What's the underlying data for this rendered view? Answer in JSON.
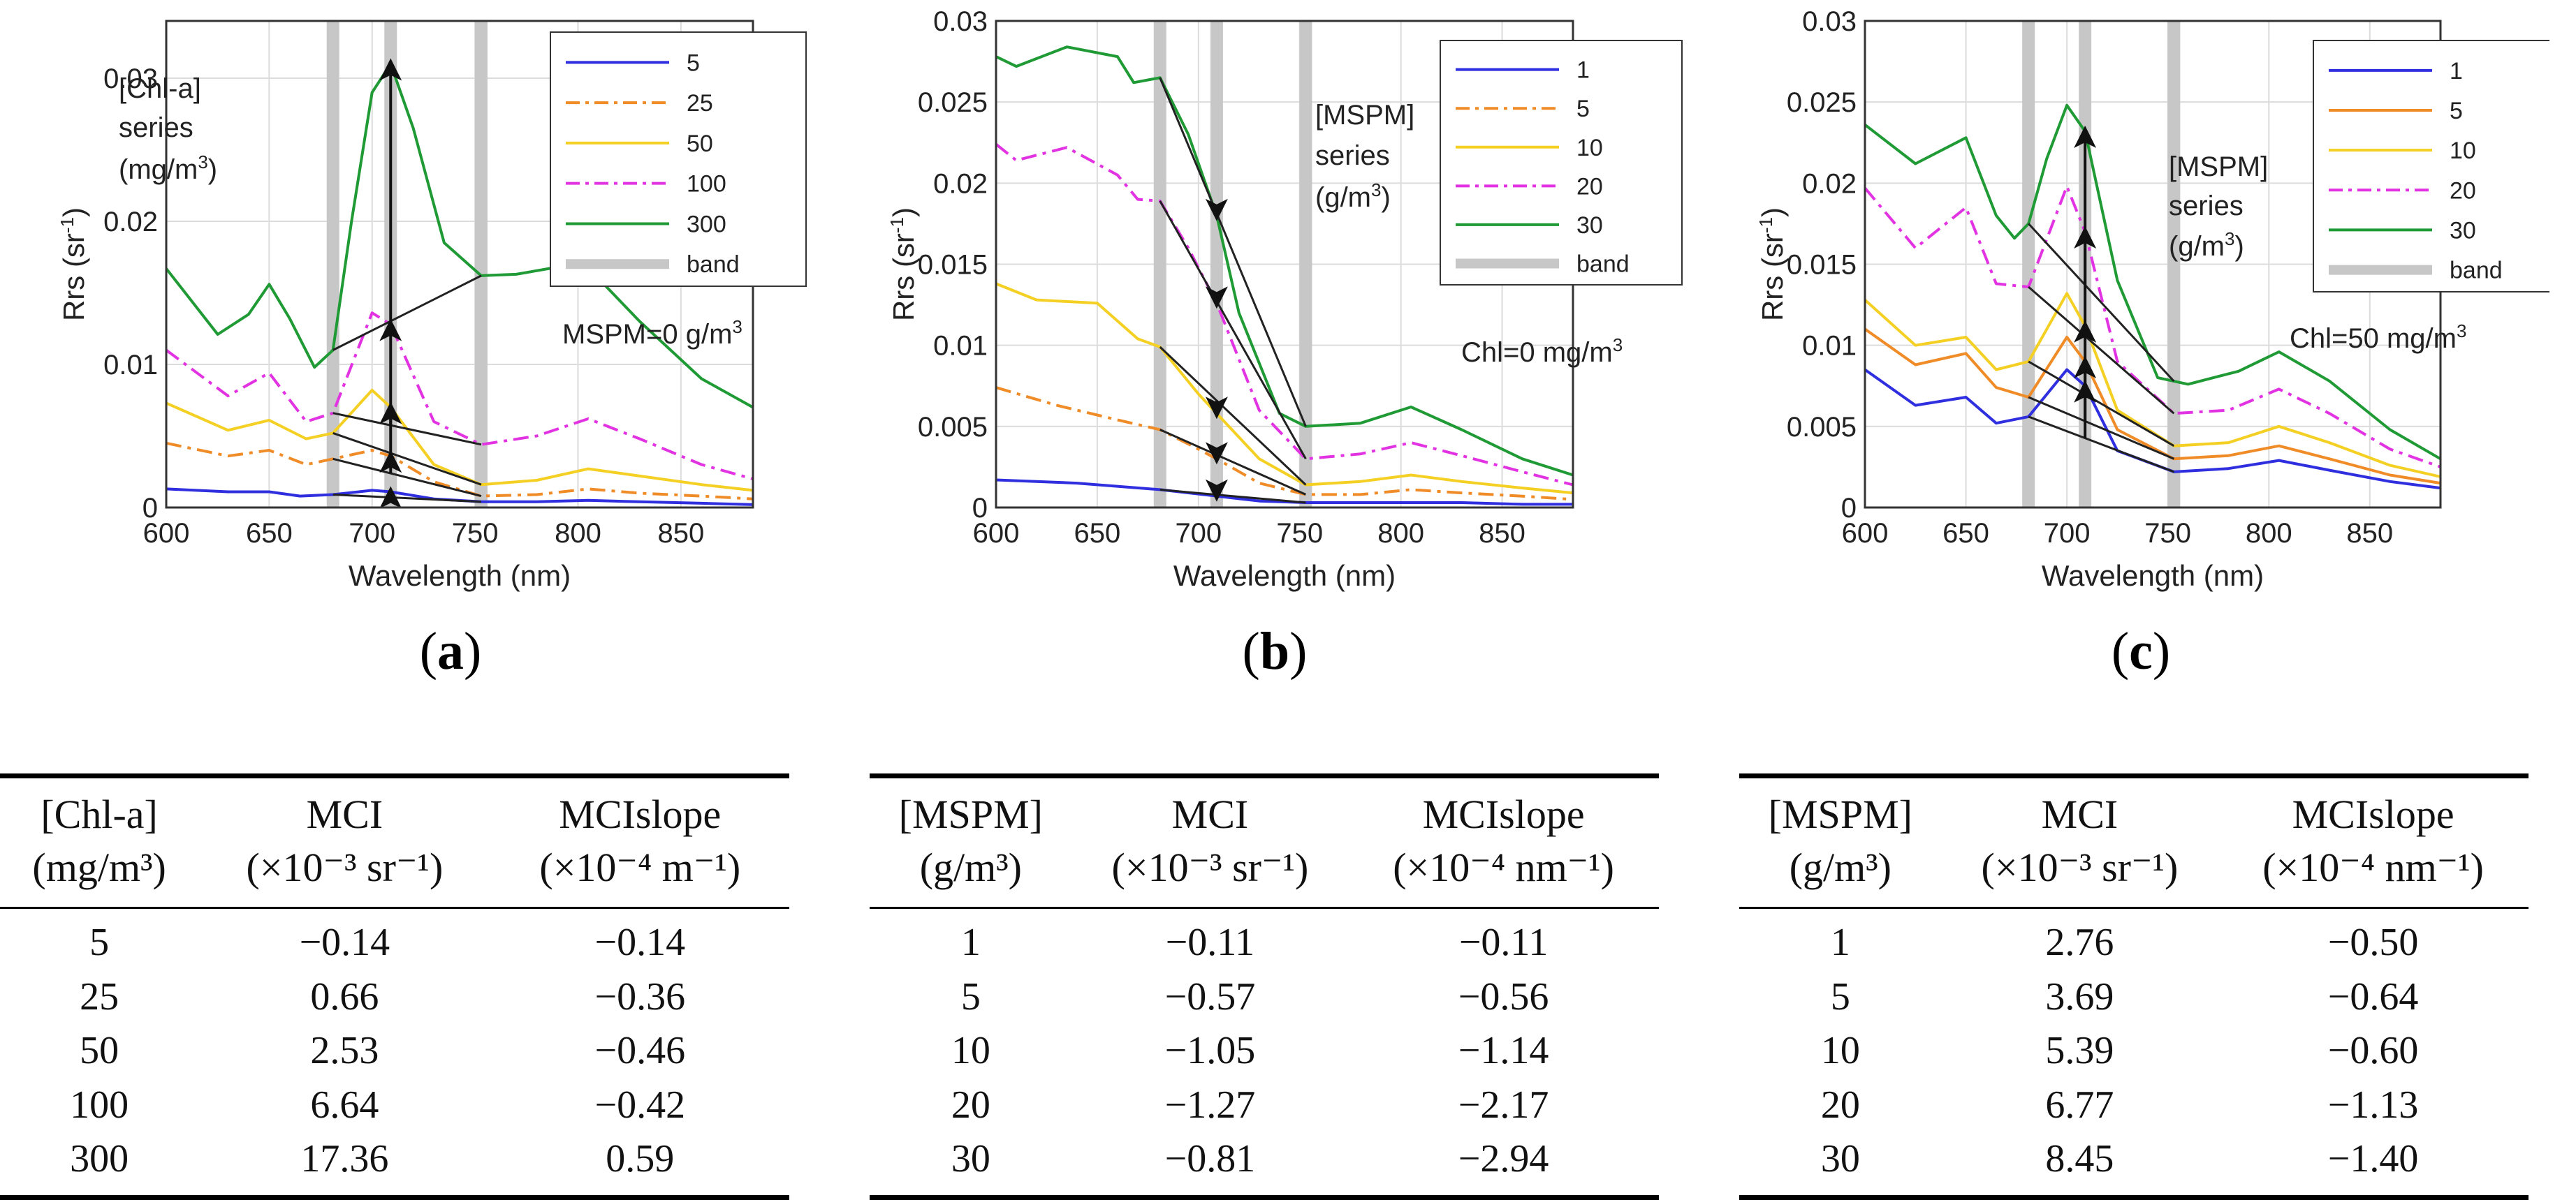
{
  "colors": {
    "c1": "#2f2fe0",
    "c2": "#f08c28",
    "c3": "#f5d024",
    "c4": "#e233e2",
    "c5": "#1f9a35",
    "band": "#c7c7c7",
    "grid": "#dcdcdc"
  },
  "chart_data": [
    {
      "type": "line",
      "panel_label": "a",
      "xlabel": "Wavelength (nm)",
      "ylabel": "Rrs (sr⁻¹)",
      "xlim": [
        600,
        885
      ],
      "ylim": [
        0,
        0.034
      ],
      "xticks": [
        600,
        650,
        700,
        750,
        800,
        850
      ],
      "xtick_labels": [
        "600",
        "650",
        "700",
        "750",
        "800",
        "850"
      ],
      "yticks": [
        0,
        0.01,
        0.02,
        0.03
      ],
      "ytick_labels": [
        "0",
        "0.01",
        "0.02",
        "0.03"
      ],
      "grid": true,
      "bands": [
        681,
        709,
        753
      ],
      "annotations": [
        "[Chl-a]",
        "series",
        "(mg/m³)",
        "MSPM=0 g/m³"
      ],
      "series": [
        {
          "name": "5",
          "style": "solid",
          "color": "#2f2fe0",
          "x": [
            600,
            630,
            650,
            665,
            681,
            700,
            709,
            730,
            753,
            780,
            805,
            830,
            860,
            885
          ],
          "y": [
            0.0013,
            0.0011,
            0.0011,
            0.0008,
            0.0009,
            0.0012,
            0.0011,
            0.0006,
            0.0004,
            0.0004,
            0.0005,
            0.0004,
            0.0003,
            0.0002
          ]
        },
        {
          "name": "25",
          "style": "dashdot",
          "color": "#f08c28",
          "x": [
            600,
            630,
            650,
            668,
            681,
            700,
            709,
            730,
            753,
            780,
            805,
            830,
            860,
            885
          ],
          "y": [
            0.0045,
            0.0036,
            0.004,
            0.003,
            0.0034,
            0.004,
            0.0036,
            0.0018,
            0.0008,
            0.0009,
            0.0013,
            0.001,
            0.0008,
            0.0006
          ]
        },
        {
          "name": "50",
          "style": "solid",
          "color": "#f5d024",
          "x": [
            600,
            630,
            650,
            668,
            681,
            700,
            709,
            730,
            753,
            780,
            805,
            830,
            860,
            885
          ],
          "y": [
            0.0073,
            0.0054,
            0.0061,
            0.0048,
            0.0052,
            0.0082,
            0.007,
            0.003,
            0.0016,
            0.0019,
            0.0027,
            0.0022,
            0.0016,
            0.0012
          ]
        },
        {
          "name": "100",
          "style": "dashdot",
          "color": "#e233e2",
          "x": [
            600,
            630,
            650,
            668,
            681,
            700,
            709,
            730,
            753,
            780,
            805,
            830,
            860,
            885
          ],
          "y": [
            0.011,
            0.0078,
            0.0094,
            0.006,
            0.0066,
            0.0136,
            0.0128,
            0.006,
            0.0044,
            0.005,
            0.0062,
            0.0048,
            0.003,
            0.002
          ]
        },
        {
          "name": "300",
          "style": "solid",
          "color": "#1f9a35",
          "x": [
            600,
            625,
            640,
            650,
            660,
            672,
            681,
            690,
            700,
            709,
            720,
            735,
            753,
            770,
            790,
            810,
            830,
            860,
            885
          ],
          "y": [
            0.0167,
            0.0121,
            0.0135,
            0.0156,
            0.0132,
            0.0098,
            0.011,
            0.02,
            0.029,
            0.031,
            0.0265,
            0.0185,
            0.0162,
            0.0163,
            0.0168,
            0.016,
            0.013,
            0.009,
            0.007
          ]
        },
        {
          "name": "band",
          "style": "band",
          "color": "#c7c7c7",
          "x": [],
          "y": []
        }
      ]
    },
    {
      "type": "line",
      "panel_label": "b",
      "xlabel": "Wavelength (nm)",
      "ylabel": "Rrs (sr⁻¹)",
      "xlim": [
        600,
        885
      ],
      "ylim": [
        0,
        0.03
      ],
      "xticks": [
        600,
        650,
        700,
        750,
        800,
        850
      ],
      "xtick_labels": [
        "600",
        "650",
        "700",
        "750",
        "800",
        "850"
      ],
      "yticks": [
        0,
        0.005,
        0.01,
        0.015,
        0.02,
        0.025,
        0.03
      ],
      "ytick_labels": [
        "0",
        "0.005",
        "0.01",
        "0.015",
        "0.02",
        "0.025",
        "0.03"
      ],
      "grid": true,
      "bands": [
        681,
        709,
        753
      ],
      "annotations": [
        "[MSPM]",
        "series",
        "(g/m³)",
        "Chl=0 mg/m³"
      ],
      "series": [
        {
          "name": "1",
          "style": "solid",
          "color": "#2f2fe0",
          "x": [
            600,
            640,
            681,
            709,
            730,
            753,
            780,
            805,
            830,
            860,
            885
          ],
          "y": [
            0.0017,
            0.0015,
            0.0011,
            0.0007,
            0.0004,
            0.0003,
            0.0003,
            0.0003,
            0.0003,
            0.0002,
            0.0002
          ]
        },
        {
          "name": "5",
          "style": "dashdot",
          "color": "#f08c28",
          "x": [
            600,
            630,
            660,
            681,
            700,
            709,
            730,
            753,
            780,
            805,
            830,
            860,
            885
          ],
          "y": [
            0.0074,
            0.0063,
            0.0054,
            0.0048,
            0.0036,
            0.003,
            0.0015,
            0.0008,
            0.0008,
            0.0011,
            0.0009,
            0.0007,
            0.0005
          ]
        },
        {
          "name": "10",
          "style": "solid",
          "color": "#f5d024",
          "x": [
            600,
            620,
            650,
            670,
            681,
            700,
            709,
            730,
            753,
            780,
            805,
            830,
            860,
            885
          ],
          "y": [
            0.0138,
            0.0128,
            0.0126,
            0.0104,
            0.0099,
            0.007,
            0.0058,
            0.003,
            0.0014,
            0.0016,
            0.002,
            0.0016,
            0.0012,
            0.0009
          ]
        },
        {
          "name": "20",
          "style": "dashdot",
          "color": "#e233e2",
          "x": [
            600,
            610,
            635,
            660,
            670,
            681,
            695,
            709,
            730,
            753,
            780,
            805,
            830,
            860,
            885
          ],
          "y": [
            0.0224,
            0.0214,
            0.0222,
            0.0205,
            0.019,
            0.0189,
            0.016,
            0.0126,
            0.006,
            0.003,
            0.0033,
            0.004,
            0.0032,
            0.0022,
            0.0014
          ]
        },
        {
          "name": "30",
          "style": "solid",
          "color": "#1f9a35",
          "x": [
            600,
            610,
            635,
            660,
            668,
            681,
            695,
            709,
            720,
            740,
            753,
            780,
            805,
            830,
            860,
            885
          ],
          "y": [
            0.0278,
            0.0272,
            0.0284,
            0.0278,
            0.0262,
            0.0265,
            0.023,
            0.018,
            0.012,
            0.0058,
            0.005,
            0.0052,
            0.0062,
            0.0048,
            0.003,
            0.002
          ]
        },
        {
          "name": "band",
          "style": "band",
          "color": "#c7c7c7",
          "x": [],
          "y": []
        }
      ]
    },
    {
      "type": "line",
      "panel_label": "c",
      "xlabel": "Wavelength (nm)",
      "ylabel": "Rrs (sr⁻¹)",
      "xlim": [
        600,
        885
      ],
      "ylim": [
        0,
        0.03
      ],
      "xticks": [
        600,
        650,
        700,
        750,
        800,
        850
      ],
      "xtick_labels": [
        "600",
        "650",
        "700",
        "750",
        "800",
        "850"
      ],
      "yticks": [
        0,
        0.005,
        0.01,
        0.015,
        0.02,
        0.025,
        0.03
      ],
      "ytick_labels": [
        "0",
        "0.005",
        "0.01",
        "0.015",
        "0.02",
        "0.025",
        "0.03"
      ],
      "grid": true,
      "bands": [
        681,
        709,
        753
      ],
      "annotations": [
        "[MSPM]",
        "series",
        "(g/m³)",
        "Chl=50 mg/m³"
      ],
      "series": [
        {
          "name": "1",
          "style": "solid",
          "color": "#2f2fe0",
          "x": [
            600,
            625,
            650,
            665,
            681,
            700,
            709,
            725,
            753,
            780,
            805,
            830,
            860,
            885
          ],
          "y": [
            0.0085,
            0.0063,
            0.0068,
            0.0052,
            0.0056,
            0.0085,
            0.0075,
            0.0035,
            0.0022,
            0.0024,
            0.0029,
            0.0023,
            0.0016,
            0.0012
          ]
        },
        {
          "name": "5",
          "style": "solid",
          "color": "#f08c28",
          "x": [
            600,
            625,
            650,
            665,
            681,
            700,
            709,
            725,
            753,
            780,
            805,
            830,
            860,
            885
          ],
          "y": [
            0.011,
            0.0088,
            0.0095,
            0.0074,
            0.0068,
            0.0105,
            0.009,
            0.0048,
            0.003,
            0.0032,
            0.0038,
            0.003,
            0.002,
            0.0015
          ]
        },
        {
          "name": "10",
          "style": "solid",
          "color": "#f5d024",
          "x": [
            600,
            625,
            650,
            665,
            681,
            700,
            709,
            725,
            753,
            780,
            805,
            830,
            860,
            885
          ],
          "y": [
            0.0128,
            0.01,
            0.0105,
            0.0085,
            0.009,
            0.0132,
            0.0112,
            0.006,
            0.0038,
            0.004,
            0.005,
            0.004,
            0.0026,
            0.0019
          ]
        },
        {
          "name": "20",
          "style": "dashdot",
          "color": "#e233e2",
          "x": [
            600,
            625,
            650,
            665,
            681,
            700,
            709,
            725,
            753,
            780,
            805,
            830,
            860,
            885
          ],
          "y": [
            0.0197,
            0.016,
            0.0185,
            0.0138,
            0.0136,
            0.0198,
            0.017,
            0.009,
            0.0058,
            0.006,
            0.0073,
            0.0058,
            0.0036,
            0.0025
          ]
        },
        {
          "name": "30",
          "style": "solid",
          "color": "#1f9a35",
          "x": [
            600,
            625,
            650,
            665,
            674,
            681,
            690,
            700,
            709,
            725,
            745,
            760,
            785,
            805,
            830,
            860,
            885
          ],
          "y": [
            0.0236,
            0.0212,
            0.0228,
            0.018,
            0.0166,
            0.0175,
            0.0215,
            0.0248,
            0.0232,
            0.014,
            0.008,
            0.0076,
            0.0084,
            0.0096,
            0.0078,
            0.0048,
            0.003
          ]
        },
        {
          "name": "band",
          "style": "band",
          "color": "#c7c7c7",
          "x": [],
          "y": []
        }
      ]
    }
  ],
  "tables": [
    {
      "header_row1": [
        "[Chl-a]",
        "MCI",
        "MCIslope"
      ],
      "header_row2": [
        "(mg/m³)",
        "(×10⁻³ sr⁻¹)",
        "(×10⁻⁴ m⁻¹)"
      ],
      "rows": [
        [
          "5",
          "−0.14",
          "−0.14"
        ],
        [
          "25",
          "0.66",
          "−0.36"
        ],
        [
          "50",
          "2.53",
          "−0.46"
        ],
        [
          "100",
          "6.64",
          "−0.42"
        ],
        [
          "300",
          "17.36",
          "0.59"
        ]
      ]
    },
    {
      "header_row1": [
        "[MSPM]",
        "MCI",
        "MCIslope"
      ],
      "header_row2": [
        "(g/m³)",
        "(×10⁻³ sr⁻¹)",
        "(×10⁻⁴ nm⁻¹)"
      ],
      "rows": [
        [
          "1",
          "−0.11",
          "−0.11"
        ],
        [
          "5",
          "−0.57",
          "−0.56"
        ],
        [
          "10",
          "−1.05",
          "−1.14"
        ],
        [
          "20",
          "−1.27",
          "−2.17"
        ],
        [
          "30",
          "−0.81",
          "−2.94"
        ]
      ]
    },
    {
      "header_row1": [
        "[MSPM]",
        "MCI",
        "MCIslope"
      ],
      "header_row2": [
        "(g/m³)",
        "(×10⁻³ sr⁻¹)",
        "(×10⁻⁴ nm⁻¹)"
      ],
      "rows": [
        [
          "1",
          "2.76",
          "−0.50"
        ],
        [
          "5",
          "3.69",
          "−0.64"
        ],
        [
          "10",
          "5.39",
          "−0.60"
        ],
        [
          "20",
          "6.77",
          "−1.13"
        ],
        [
          "30",
          "8.45",
          "−1.40"
        ]
      ]
    }
  ]
}
